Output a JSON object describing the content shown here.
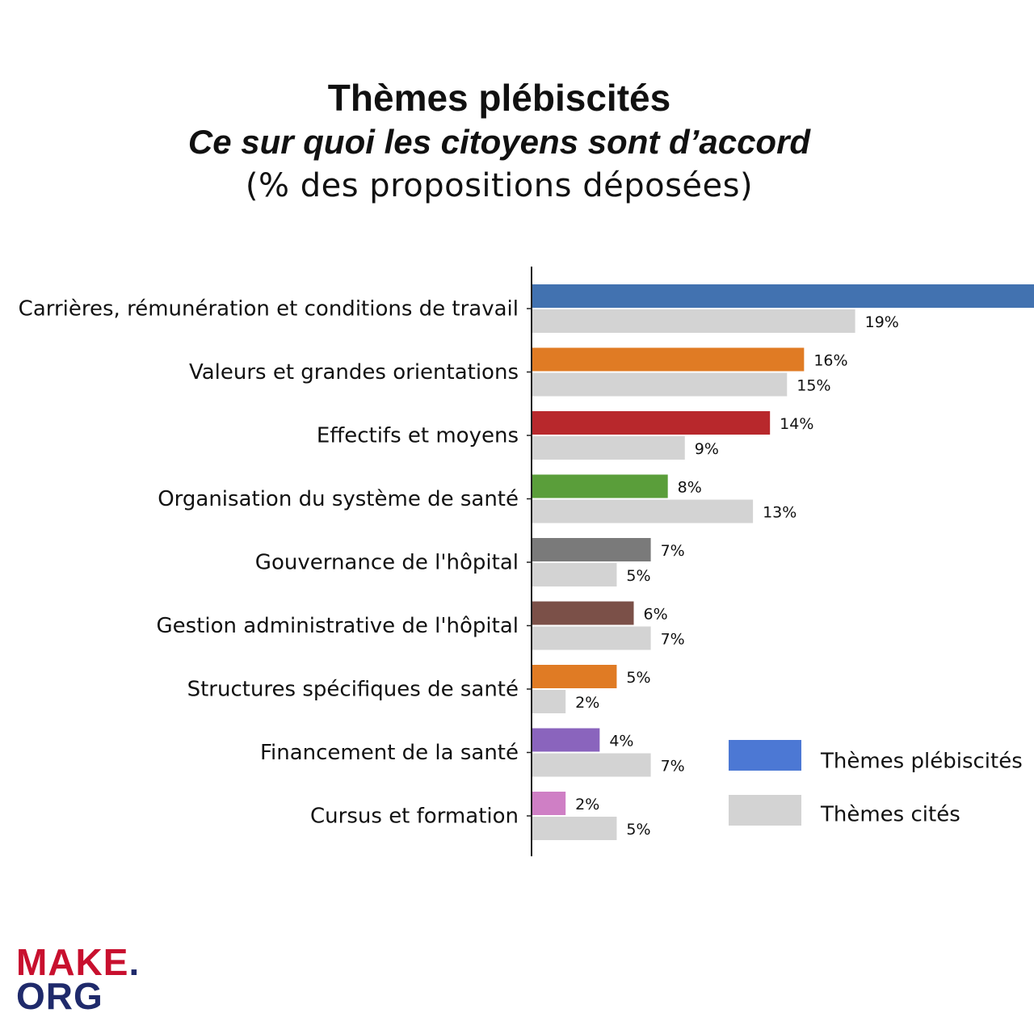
{
  "header": {
    "title": "Thèmes plébiscités",
    "subtitle": "Ce sur quoi les citoyens sont d’accord",
    "unit_note": "(% des propositions déposées)"
  },
  "logo": {
    "line1": "MAKE",
    "dot": ".",
    "line2": "ORG"
  },
  "colors": {
    "cites": "#d3d3d3",
    "axis": "#222222",
    "legend_plebiscites": "#4c78d4"
  },
  "chart_data": {
    "type": "bar",
    "orientation": "horizontal",
    "title": "Thèmes plébiscités",
    "categories": [
      "Carrières, rémunération et conditions de travail",
      "Valeurs et grandes orientations",
      "Effectifs et moyens",
      "Organisation du système de santé",
      "Gouvernance de l'hôpital",
      "Gestion administrative de l'hôpital",
      "Structures spécifiques de santé",
      "Financement de la santé",
      "Cursus et formation"
    ],
    "series": [
      {
        "name": "Thèmes plébiscités",
        "values": [
          30,
          16,
          14,
          8,
          7,
          6,
          5,
          4,
          2
        ],
        "value_labels": [
          "",
          "16%",
          "14%",
          "8%",
          "7%",
          "6%",
          "5%",
          "4%",
          "2%"
        ],
        "colors": [
          "#4272b0",
          "#e07b24",
          "#b8282c",
          "#5a9e3a",
          "#7a7a7a",
          "#7b5048",
          "#e07b24",
          "#8a64bd",
          "#cf7fc5"
        ]
      },
      {
        "name": "Thèmes cités",
        "values": [
          19,
          15,
          9,
          13,
          5,
          7,
          2,
          7,
          5
        ],
        "value_labels": [
          "19%",
          "15%",
          "9%",
          "13%",
          "5%",
          "7%",
          "2%",
          "7%",
          "5%"
        ]
      }
    ],
    "xlim": [
      0,
      29.5
    ],
    "grid": false,
    "legend": {
      "placement": "bottom-right",
      "entries": [
        "Thèmes plébiscités",
        "Thèmes cités"
      ]
    }
  }
}
